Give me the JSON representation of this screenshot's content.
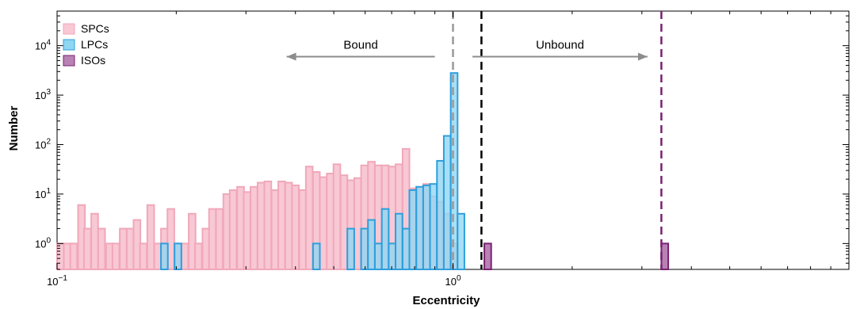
{
  "chart_data": {
    "type": "bar",
    "xlabel": "Eccentricity",
    "ylabel": "Number",
    "xscale": "log",
    "yscale": "log",
    "xlim": [
      0.1,
      10
    ],
    "ylim": [
      0.3,
      50000
    ],
    "x_ticks": [
      {
        "value": 0.1,
        "base": "10",
        "exp": "−1"
      },
      {
        "value": 1,
        "base": "10",
        "exp": "0"
      }
    ],
    "y_ticks": [
      {
        "value": 1,
        "base": "10",
        "exp": "0"
      },
      {
        "value": 10,
        "base": "10",
        "exp": "1"
      },
      {
        "value": 100,
        "base": "10",
        "exp": "2"
      },
      {
        "value": 1000,
        "base": "10",
        "exp": "3"
      },
      {
        "value": 10000,
        "base": "10",
        "exp": "4"
      }
    ],
    "legend": {
      "position": "top-left",
      "entries": [
        {
          "label": "SPCs",
          "fill": "#f8c8d4",
          "stroke": "#f0a8ba"
        },
        {
          "label": "LPCs",
          "fill": "#8fd6f2",
          "stroke": "#2e9fdc"
        },
        {
          "label": "ISOs",
          "fill": "#b882b4",
          "stroke": "#7a2272"
        }
      ]
    },
    "series": [
      {
        "name": "SPCs",
        "color": "#f8c8d4",
        "edge": "#f0a8ba",
        "bins": [
          {
            "e": 0.1,
            "n": 1
          },
          {
            "e": 0.104,
            "n": 1
          },
          {
            "e": 0.108,
            "n": 1
          },
          {
            "e": 0.113,
            "n": 6
          },
          {
            "e": 0.117,
            "n": 2
          },
          {
            "e": 0.122,
            "n": 4
          },
          {
            "e": 0.127,
            "n": 2
          },
          {
            "e": 0.133,
            "n": 1
          },
          {
            "e": 0.138,
            "n": 1
          },
          {
            "e": 0.144,
            "n": 2
          },
          {
            "e": 0.15,
            "n": 2
          },
          {
            "e": 0.156,
            "n": 3
          },
          {
            "e": 0.162,
            "n": 1
          },
          {
            "e": 0.169,
            "n": 6
          },
          {
            "e": 0.176,
            "n": 1
          },
          {
            "e": 0.183,
            "n": 2
          },
          {
            "e": 0.19,
            "n": 5
          },
          {
            "e": 0.198,
            "n": 1
          },
          {
            "e": 0.206,
            "n": 1
          },
          {
            "e": 0.215,
            "n": 4
          },
          {
            "e": 0.223,
            "n": 1
          },
          {
            "e": 0.233,
            "n": 2
          },
          {
            "e": 0.242,
            "n": 5
          },
          {
            "e": 0.252,
            "n": 5
          },
          {
            "e": 0.263,
            "n": 10
          },
          {
            "e": 0.273,
            "n": 12
          },
          {
            "e": 0.285,
            "n": 14
          },
          {
            "e": 0.296,
            "n": 11
          },
          {
            "e": 0.308,
            "n": 14
          },
          {
            "e": 0.321,
            "n": 17
          },
          {
            "e": 0.334,
            "n": 18
          },
          {
            "e": 0.348,
            "n": 12
          },
          {
            "e": 0.362,
            "n": 18
          },
          {
            "e": 0.377,
            "n": 17
          },
          {
            "e": 0.392,
            "n": 15
          },
          {
            "e": 0.409,
            "n": 12
          },
          {
            "e": 0.425,
            "n": 36
          },
          {
            "e": 0.443,
            "n": 28
          },
          {
            "e": 0.461,
            "n": 22
          },
          {
            "e": 0.48,
            "n": 26
          },
          {
            "e": 0.499,
            "n": 40
          },
          {
            "e": 0.52,
            "n": 24
          },
          {
            "e": 0.541,
            "n": 19
          },
          {
            "e": 0.563,
            "n": 21
          },
          {
            "e": 0.586,
            "n": 38
          },
          {
            "e": 0.61,
            "n": 45
          },
          {
            "e": 0.635,
            "n": 38
          },
          {
            "e": 0.661,
            "n": 38
          },
          {
            "e": 0.688,
            "n": 36
          },
          {
            "e": 0.716,
            "n": 40
          },
          {
            "e": 0.746,
            "n": 82
          },
          {
            "e": 0.776,
            "n": 13
          },
          {
            "e": 0.808,
            "n": 14
          },
          {
            "e": 0.841,
            "n": 16
          },
          {
            "e": 0.875,
            "n": 9
          },
          {
            "e": 0.911,
            "n": 7
          },
          {
            "e": 0.948,
            "n": 4
          },
          {
            "e": 0.987,
            "n": 1
          }
        ]
      },
      {
        "name": "LPCs",
        "color": "#8fd6f2",
        "edge": "#2e9fdc",
        "bins": [
          {
            "e": 0.183,
            "n": 1
          },
          {
            "e": 0.198,
            "n": 1
          },
          {
            "e": 0.443,
            "n": 1
          },
          {
            "e": 0.541,
            "n": 2
          },
          {
            "e": 0.586,
            "n": 2
          },
          {
            "e": 0.61,
            "n": 3
          },
          {
            "e": 0.635,
            "n": 1
          },
          {
            "e": 0.661,
            "n": 5
          },
          {
            "e": 0.688,
            "n": 1
          },
          {
            "e": 0.716,
            "n": 4
          },
          {
            "e": 0.746,
            "n": 2
          },
          {
            "e": 0.776,
            "n": 12
          },
          {
            "e": 0.808,
            "n": 14
          },
          {
            "e": 0.841,
            "n": 15
          },
          {
            "e": 0.875,
            "n": 16
          },
          {
            "e": 0.911,
            "n": 47
          },
          {
            "e": 0.948,
            "n": 150
          },
          {
            "e": 0.987,
            "n": 2800
          },
          {
            "e": 1.027,
            "n": 4
          }
        ]
      },
      {
        "name": "ISOs",
        "color": "#b882b4",
        "edge": "#7a2272",
        "bins": [
          {
            "e": 1.2,
            "n": 1
          },
          {
            "e": 3.36,
            "n": 1
          }
        ]
      }
    ],
    "bin_width_log10": 0.0173,
    "reference_lines": [
      {
        "x": 1.0,
        "color": "#999999",
        "style": "dashed"
      },
      {
        "x": 1.18,
        "color": "#000000",
        "style": "dashed"
      },
      {
        "x": 3.36,
        "color": "#7a2272",
        "style": "dashed"
      }
    ],
    "annotations": [
      {
        "text": "Bound",
        "direction": "left",
        "x_from": 0.9,
        "x_to": 0.38,
        "y": 6000
      },
      {
        "text": "Unbound",
        "direction": "right",
        "x_from": 1.12,
        "x_to": 3.1,
        "y": 6000
      }
    ]
  }
}
